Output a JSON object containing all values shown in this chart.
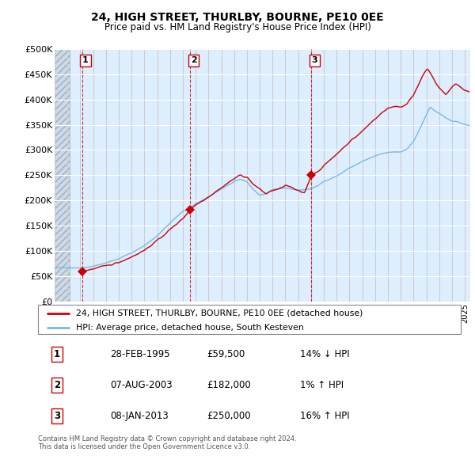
{
  "title": "24, HIGH STREET, THURLBY, BOURNE, PE10 0EE",
  "subtitle": "Price paid vs. HM Land Registry's House Price Index (HPI)",
  "ylim": [
    0,
    500000
  ],
  "yticks": [
    0,
    50000,
    100000,
    150000,
    200000,
    250000,
    300000,
    350000,
    400000,
    450000,
    500000
  ],
  "ytick_labels": [
    "£0",
    "£50K",
    "£100K",
    "£150K",
    "£200K",
    "£250K",
    "£300K",
    "£350K",
    "£400K",
    "£450K",
    "£500K"
  ],
  "xlim_start": 1993.0,
  "xlim_end": 2025.42,
  "bg_color": "#ddeeff",
  "hatch_bg_color": "#c8dced",
  "grid_color": "#cccccc",
  "sale_dates_year": [
    1995.16,
    2003.59,
    2013.02
  ],
  "sale_prices": [
    59500,
    182000,
    250000
  ],
  "sale_labels": [
    "1",
    "2",
    "3"
  ],
  "red_line_color": "#cc0000",
  "blue_line_color": "#7ab8e8",
  "marker_color": "#cc0000",
  "vline_color": "#cc0000",
  "legend_label_red": "24, HIGH STREET, THURLBY, BOURNE, PE10 0EE (detached house)",
  "legend_label_blue": "HPI: Average price, detached house, South Kesteven",
  "table_data": [
    [
      "1",
      "28-FEB-1995",
      "£59,500",
      "14% ↓ HPI"
    ],
    [
      "2",
      "07-AUG-2003",
      "£182,000",
      "1% ↑ HPI"
    ],
    [
      "3",
      "08-JAN-2013",
      "£250,000",
      "16% ↑ HPI"
    ]
  ],
  "footer": "Contains HM Land Registry data © Crown copyright and database right 2024.\nThis data is licensed under the Open Government Licence v3.0."
}
